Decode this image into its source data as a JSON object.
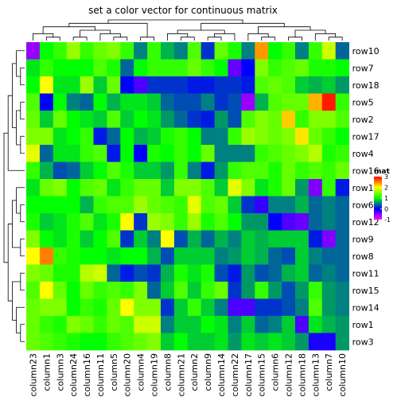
{
  "chart_data": {
    "type": "heatmap",
    "title": "set a color vector for continuous matrix",
    "rows": [
      "row10",
      "row7",
      "row18",
      "row5",
      "row2",
      "row17",
      "row4",
      "row16",
      "row13",
      "row6",
      "row12",
      "row9",
      "row8",
      "row11",
      "row15",
      "row14",
      "row1",
      "row3"
    ],
    "columns": [
      "column23",
      "column1",
      "column3",
      "column24",
      "column16",
      "column11",
      "column5",
      "column20",
      "column4",
      "column19",
      "column8",
      "column21",
      "column2",
      "column9",
      "column14",
      "column22",
      "column17",
      "column15",
      "column6",
      "column12",
      "column18",
      "column13",
      "column7",
      "column10"
    ],
    "values": [
      [
        -0.6,
        1.0,
        1.2,
        1.6,
        1.2,
        1.4,
        1.5,
        1.2,
        0.5,
        1.2,
        0.7,
        0.5,
        1.3,
        0.2,
        1.4,
        1.1,
        0.5,
        2.4,
        1.0,
        1.2,
        0.5,
        1.2,
        1.8,
        0.4
      ],
      [
        0.9,
        1.2,
        1.0,
        1.0,
        1.0,
        1.3,
        1.1,
        0.4,
        1.0,
        1.2,
        1.2,
        1.2,
        1.4,
        1.2,
        1.0,
        -0.4,
        0.0,
        1.5,
        1.2,
        1.3,
        1.4,
        1.1,
        1.1,
        1.0
      ],
      [
        1.0,
        2.0,
        0.9,
        0.9,
        1.6,
        0.8,
        1.4,
        0.0,
        -0.3,
        0.2,
        0.2,
        0.2,
        0.1,
        0.1,
        0.2,
        0.2,
        0.1,
        1.3,
        1.4,
        1.3,
        0.8,
        0.7,
        0.8,
        0.6
      ],
      [
        1.3,
        0.0,
        1.0,
        0.5,
        0.4,
        1.0,
        0.7,
        0.9,
        0.9,
        0.8,
        0.4,
        0.3,
        0.3,
        0.5,
        0.2,
        0.3,
        -0.6,
        0.7,
        1.3,
        1.4,
        1.4,
        2.3,
        2.9,
        1.2
      ],
      [
        1.4,
        0.8,
        1.4,
        1.0,
        0.9,
        0.8,
        1.3,
        0.8,
        1.0,
        0.9,
        0.6,
        0.4,
        0.2,
        0.1,
        0.6,
        0.3,
        1.3,
        1.5,
        1.4,
        2.2,
        1.2,
        1.5,
        1.5,
        1.3
      ],
      [
        1.5,
        1.5,
        0.9,
        1.0,
        1.2,
        0.1,
        0.4,
        1.0,
        0.7,
        0.8,
        1.1,
        1.2,
        1.0,
        0.5,
        0.5,
        1.2,
        1.6,
        1.5,
        1.4,
        1.5,
        2.1,
        1.4,
        1.2,
        1.0
      ],
      [
        1.9,
        0.4,
        0.9,
        0.9,
        1.2,
        1.3,
        0.1,
        1.0,
        0.0,
        1.1,
        1.0,
        1.2,
        1.0,
        1.4,
        0.5,
        0.5,
        0.5,
        1.2,
        1.3,
        1.4,
        1.5,
        1.7,
        1.1,
        1.2
      ],
      [
        1.2,
        0.7,
        0.3,
        0.4,
        0.8,
        1.0,
        1.3,
        1.1,
        0.8,
        0.8,
        0.6,
        1.2,
        0.5,
        0.1,
        0.6,
        1.2,
        1.3,
        1.3,
        1.1,
        1.4,
        1.2,
        1.3,
        1.2,
        1.4
      ],
      [
        0.9,
        1.4,
        1.5,
        1.0,
        1.3,
        1.4,
        0.9,
        1.2,
        1.4,
        1.4,
        0.8,
        1.5,
        1.5,
        1.3,
        0.8,
        1.9,
        1.5,
        0.9,
        1.1,
        1.4,
        0.6,
        -0.5,
        1.2,
        0.1
      ],
      [
        1.0,
        1.0,
        1.0,
        1.0,
        0.7,
        1.2,
        1.3,
        1.3,
        1.6,
        1.4,
        1.3,
        1.2,
        1.9,
        1.3,
        1.4,
        0.8,
        0.2,
        -0.2,
        0.5,
        0.5,
        0.7,
        0.4,
        0.5,
        0.4
      ],
      [
        1.1,
        0.8,
        0.9,
        1.1,
        1.3,
        0.9,
        1.1,
        2.0,
        0.2,
        1.6,
        1.5,
        1.2,
        1.6,
        1.1,
        1.3,
        1.0,
        0.6,
        0.6,
        0.0,
        -0.3,
        -0.4,
        0.4,
        0.5,
        0.4
      ],
      [
        1.5,
        1.0,
        0.9,
        1.1,
        0.8,
        1.0,
        1.3,
        0.2,
        0.8,
        0.5,
        2.0,
        0.3,
        0.7,
        0.4,
        0.7,
        0.5,
        0.8,
        0.7,
        0.8,
        0.8,
        0.8,
        0.1,
        -0.5,
        0.4
      ],
      [
        2.0,
        2.5,
        1.2,
        1.1,
        1.0,
        1.0,
        0.9,
        1.0,
        1.0,
        0.7,
        0.3,
        0.8,
        0.8,
        0.8,
        0.5,
        0.6,
        0.8,
        0.7,
        0.4,
        0.3,
        0.8,
        0.5,
        0.4,
        0.4
      ],
      [
        1.5,
        1.4,
        1.1,
        1.1,
        1.7,
        1.8,
        0.4,
        0.1,
        0.3,
        0.2,
        0.7,
        1.1,
        0.9,
        1.1,
        0.3,
        0.1,
        0.6,
        0.3,
        0.4,
        0.7,
        0.8,
        0.4,
        0.5,
        0.4
      ],
      [
        1.3,
        2.0,
        1.4,
        1.0,
        1.4,
        1.2,
        1.3,
        1.2,
        1.5,
        0.4,
        0.8,
        1.3,
        0.8,
        1.2,
        1.4,
        0.2,
        0.6,
        1.2,
        0.6,
        0.3,
        0.6,
        1.2,
        0.6,
        0.5
      ],
      [
        1.4,
        1.5,
        1.5,
        1.0,
        1.2,
        1.1,
        1.4,
        2.0,
        1.5,
        1.5,
        0.2,
        0.8,
        1.2,
        0.8,
        0.5,
        -0.3,
        -0.3,
        0.2,
        0.2,
        0.3,
        0.5,
        1.3,
        0.6,
        0.5
      ],
      [
        1.4,
        1.2,
        1.1,
        1.5,
        1.4,
        1.2,
        1.4,
        1.3,
        1.8,
        1.8,
        0.5,
        0.8,
        0.8,
        1.0,
        0.9,
        0.5,
        0.8,
        0.4,
        0.5,
        0.8,
        -0.3,
        0.9,
        0.7,
        0.6
      ],
      [
        1.4,
        1.3,
        1.2,
        1.1,
        1.0,
        1.0,
        1.2,
        1.3,
        1.4,
        1.5,
        0.8,
        1.0,
        0.8,
        0.8,
        0.9,
        0.6,
        0.9,
        0.8,
        0.9,
        0.8,
        0.6,
        -0.1,
        -0.1,
        0.6
      ]
    ],
    "legend": {
      "title": "mat",
      "position": "right",
      "ticks": [
        3,
        2,
        1,
        0,
        -1
      ],
      "color_breaks": [
        {
          "value": -1,
          "color": "#ff00ff"
        },
        {
          "value": 0,
          "color": "#0000ff"
        },
        {
          "value": 1,
          "color": "#00ff00"
        },
        {
          "value": 2,
          "color": "#ffff00"
        },
        {
          "value": 3,
          "color": "#ff0000"
        }
      ],
      "range": [
        -1,
        3
      ]
    },
    "row_dendrogram": "left",
    "column_dendrogram": "top"
  }
}
